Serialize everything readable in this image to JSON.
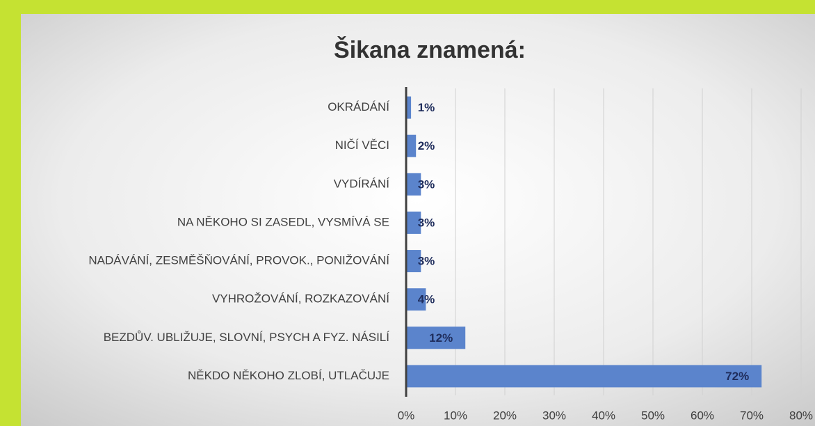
{
  "chart_data": {
    "type": "bar",
    "orientation": "horizontal",
    "title": "Šikana znamená:",
    "categories": [
      "OKRÁDÁNÍ",
      "NIČÍ VĚCI",
      "VYDÍRÁNÍ",
      "NA NĚKOHO SI ZASEDL, VYSMÍVÁ SE",
      "NADÁVÁNÍ, ZESMĚŠŇOVÁNÍ, PROVOK., PONIŽOVÁNÍ",
      "VYHROŽOVÁNÍ, ROZKAZOVÁNÍ",
      "BEZDŮV. UBLIŽUJE, SLOVNÍ, PSYCH A FYZ. NÁSILÍ",
      "NĚKDO NĚKOHO ZLOBÍ, UTLAČUJE"
    ],
    "values": [
      1,
      2,
      3,
      3,
      3,
      4,
      12,
      72
    ],
    "value_labels": [
      "1%",
      "2%",
      "3%",
      "3%",
      "3%",
      "4%",
      "12%",
      "72%"
    ],
    "color": "#5b84cc",
    "xlim": [
      0,
      80
    ],
    "xticks": [
      {
        "value": 0,
        "label": "0%"
      },
      {
        "value": 10,
        "label": "10%"
      },
      {
        "value": 20,
        "label": "20%"
      },
      {
        "value": 30,
        "label": "30%"
      },
      {
        "value": 40,
        "label": "40%"
      },
      {
        "value": 50,
        "label": "50%"
      },
      {
        "value": 60,
        "label": "60%"
      },
      {
        "value": 70,
        "label": "70%"
      },
      {
        "value": 80,
        "label": "80%"
      }
    ],
    "grid": true
  }
}
